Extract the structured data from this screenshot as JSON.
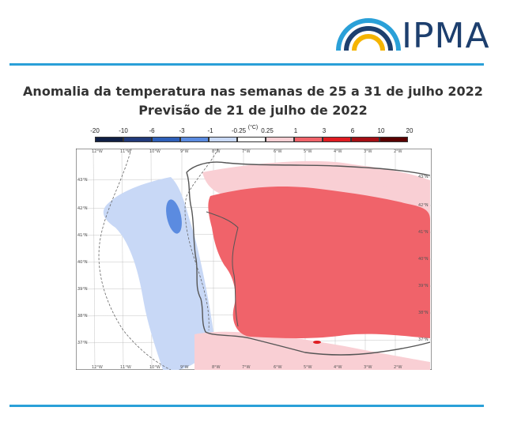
{
  "header": {
    "logo_text": "IPMA",
    "logo_icon": "rainbow-arc-icon",
    "brand_colors": {
      "dark_blue": "#1d3f6e",
      "light_blue": "#2aa0d8",
      "yellow": "#f5b400"
    }
  },
  "title": {
    "line1": "Anomalia da temperatura nas semanas de 25 a 31 de julho 2022",
    "line2": "Previsão de 21 de julho de 2022"
  },
  "legend": {
    "unit": "(°C)",
    "labels": [
      "-20",
      "-10",
      "-6",
      "-3",
      "-1",
      "-0.25",
      "0.25",
      "1",
      "3",
      "6",
      "10",
      "20"
    ],
    "colors": [
      "#101f45",
      "#213a7a",
      "#2e5fb8",
      "#5b8be0",
      "#c8d8f6",
      "#ffffff",
      "#f9cfd4",
      "#f0636a",
      "#e01c22",
      "#a50f15",
      "#5a0000"
    ]
  },
  "map": {
    "longitude_labels": [
      "12°W",
      "11°W",
      "10°W",
      "9°W",
      "8°W",
      "7°W",
      "6°W",
      "5°W",
      "4°W",
      "3°W",
      "2°W"
    ],
    "latitude_labels": [
      "43°N",
      "42°N",
      "41°N",
      "40°N",
      "39°N",
      "38°N",
      "37°N"
    ],
    "colors": {
      "land_outline": "#555555",
      "grid": "#9a9a9a",
      "warm": "#f0636a",
      "mild_warm": "#f9cfd4",
      "cool": "#c8d8f6",
      "cooler": "#5b8be0"
    }
  }
}
